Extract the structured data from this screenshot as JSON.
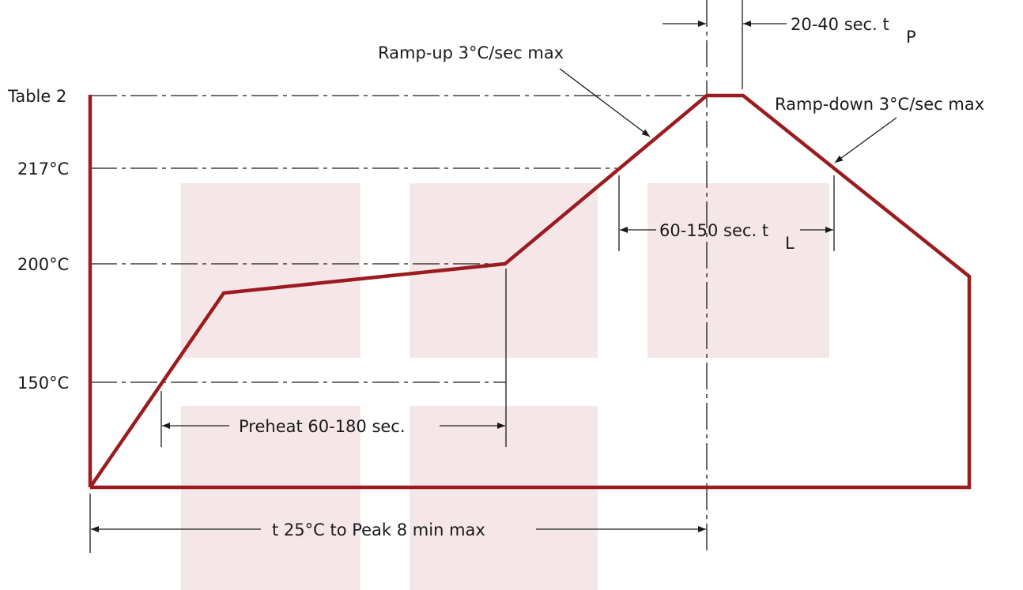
{
  "diagram": {
    "y_labels": {
      "peak": "Table 2",
      "t217": "217°C",
      "t200": "200°C",
      "t150": "150°C"
    },
    "annotations": {
      "ramp_up": "Ramp-up 3°C/sec max",
      "ramp_down": "Ramp-down 3°C/sec max",
      "tp_text": "20-40 sec. t",
      "tp_sub": "P",
      "tl_text": "60-150 sec. t",
      "tl_sub": "L",
      "preheat": "Preheat 60-180 sec.",
      "total": "t  25°C to Peak 8 min max"
    },
    "colors": {
      "profile": "#9b1b1f",
      "lines": "#1a1a1a",
      "watermark": "#f5e6e7"
    }
  }
}
